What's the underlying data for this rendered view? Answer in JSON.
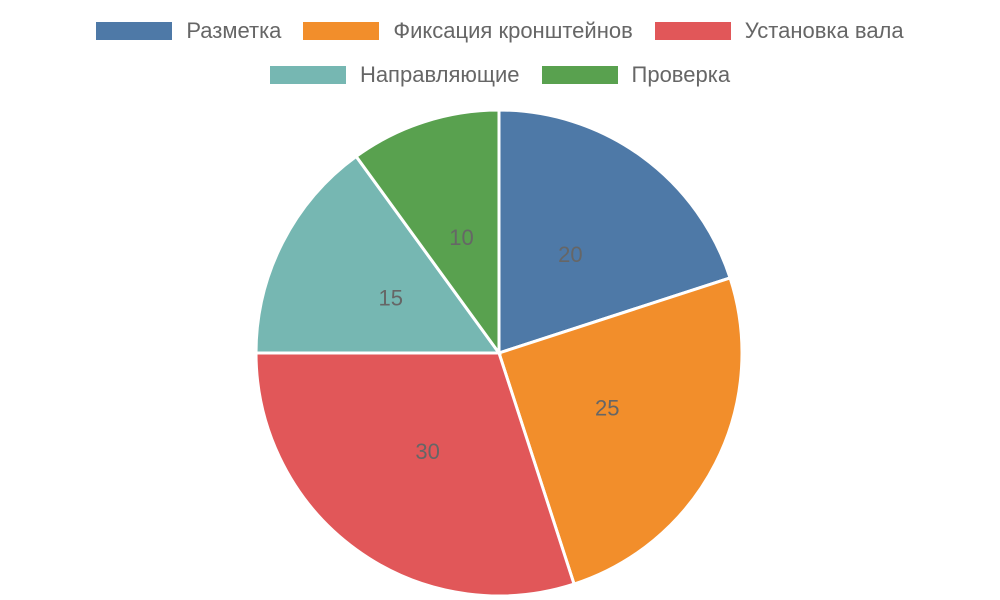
{
  "chart_data": {
    "type": "pie",
    "categories": [
      "Разметка",
      "Фиксация кронштейнов",
      "Установка вала",
      "Направляющие",
      "Проверка"
    ],
    "values": [
      20,
      25,
      30,
      15,
      10
    ],
    "colors": [
      "#4e79a7",
      "#f28e2b",
      "#e15759",
      "#76b7b2",
      "#59a14f"
    ],
    "data_labels": [
      "20",
      "25",
      "30",
      "15",
      "10"
    ],
    "legend_position": "top",
    "start_angle": "top, clockwise"
  }
}
